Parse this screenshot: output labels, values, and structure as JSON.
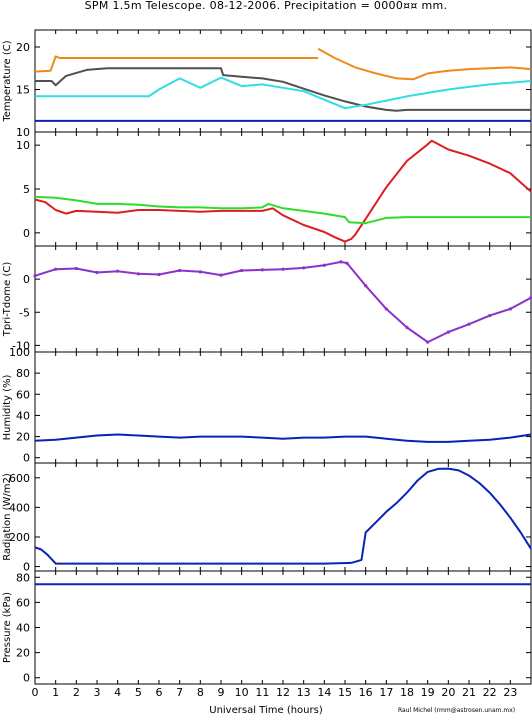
{
  "title": "SPM 1.5m Telescope. 08-12-2006. Precipitation = 0000¤¤ mm.",
  "xlabel": "Universal Time (hours)",
  "credit": "Raul Michel (rmm@astrosen.unam.mx)",
  "colors": {
    "orange": "#ee8a1c",
    "dark_gray": "#505050",
    "cyan": "#30dce6",
    "blue": "#0a22b8",
    "red": "#dc1e1e",
    "green": "#2edc2e",
    "purple": "#8a32cc",
    "axis": "#000000"
  },
  "chart_data": [
    {
      "id": "temperature",
      "type": "line",
      "ylabel": "Temperature (C)",
      "xlim": [
        0,
        24
      ],
      "ylim": [
        10,
        22
      ],
      "yticks": [
        10,
        15,
        20
      ],
      "xticks": [
        0,
        1,
        2,
        3,
        4,
        5,
        6,
        7,
        8,
        9,
        10,
        11,
        12,
        13,
        14,
        15,
        16,
        17,
        18,
        19,
        20,
        21,
        22,
        23
      ],
      "series": [
        {
          "color": "orange",
          "x": [
            0,
            0.75,
            1.0,
            1.2,
            13.7
          ],
          "y": [
            17.1,
            17.2,
            18.9,
            18.7,
            18.7
          ],
          "gap_after": 13.7,
          "x2": [
            13.7,
            14.5,
            15.5,
            16.5,
            17.5,
            18.3,
            19.0,
            20,
            21,
            22,
            23,
            24
          ],
          "y2": [
            19.8,
            18.7,
            17.6,
            16.9,
            16.3,
            16.2,
            16.9,
            17.2,
            17.4,
            17.5,
            17.6,
            17.4
          ]
        },
        {
          "color": "dark_gray",
          "x": [
            0,
            0.8,
            1.0,
            1.5,
            2.5,
            3.5,
            5,
            9.0,
            9.1,
            10,
            11,
            12,
            13,
            14,
            15,
            16,
            17,
            17.5,
            18,
            20,
            24
          ],
          "y": [
            16.0,
            16.0,
            15.5,
            16.6,
            17.3,
            17.5,
            17.5,
            17.5,
            16.7,
            16.5,
            16.3,
            15.9,
            15.1,
            14.3,
            13.6,
            13.0,
            12.6,
            12.5,
            12.6,
            12.6,
            12.6
          ]
        },
        {
          "color": "cyan",
          "x": [
            0,
            5.5,
            6,
            7,
            8,
            9,
            10,
            11,
            12,
            13,
            14,
            14.5,
            15,
            16,
            17,
            18,
            19,
            20,
            21,
            22,
            23,
            24
          ],
          "y": [
            14.2,
            14.2,
            15.0,
            16.3,
            15.2,
            16.4,
            15.4,
            15.6,
            15.2,
            14.8,
            13.8,
            13.3,
            12.8,
            13.2,
            13.7,
            14.2,
            14.6,
            15.0,
            15.3,
            15.6,
            15.8,
            16.0
          ]
        },
        {
          "color": "blue",
          "x": [
            0,
            24
          ],
          "y": [
            11.3,
            11.3
          ]
        }
      ]
    },
    {
      "id": "tpri_tdome_temps",
      "type": "line",
      "ylabel": "",
      "xlim": [
        0,
        24
      ],
      "ylim": [
        -1.5,
        11.5
      ],
      "yticks": [
        0,
        5,
        10
      ],
      "series": [
        {
          "color": "red",
          "x": [
            0,
            0.5,
            1,
            1.5,
            2,
            3,
            4,
            5,
            6,
            7,
            8,
            9,
            10,
            11,
            11.5,
            12,
            13,
            14,
            14.5,
            15,
            15.3,
            15.5,
            16,
            17,
            18,
            19,
            19.2,
            20,
            21,
            22,
            23,
            24
          ],
          "y": [
            3.8,
            3.5,
            2.6,
            2.2,
            2.5,
            2.4,
            2.3,
            2.6,
            2.6,
            2.5,
            2.4,
            2.5,
            2.5,
            2.5,
            2.8,
            2.0,
            0.9,
            0.1,
            -0.5,
            -1.0,
            -0.7,
            -0.2,
            1.6,
            5.2,
            8.2,
            10.1,
            10.5,
            9.5,
            8.8,
            7.9,
            6.8,
            4.7
          ]
        },
        {
          "color": "green",
          "x": [
            0,
            1,
            2,
            3,
            4,
            5,
            6,
            7,
            8,
            9,
            10,
            11,
            11.3,
            12,
            13,
            14,
            15,
            15.2,
            16,
            17,
            18,
            20,
            24
          ],
          "y": [
            4.1,
            4.0,
            3.7,
            3.3,
            3.3,
            3.2,
            3.0,
            2.9,
            2.9,
            2.8,
            2.8,
            2.9,
            3.3,
            2.8,
            2.5,
            2.2,
            1.8,
            1.2,
            1.1,
            1.7,
            1.8,
            1.8,
            1.8
          ]
        }
      ]
    },
    {
      "id": "tpri_tdome",
      "type": "scatter",
      "ylabel": "Tpri-Tdome (C)",
      "xlim": [
        0,
        24
      ],
      "ylim": [
        -11,
        5
      ],
      "yticks": [
        -10,
        -5,
        0
      ],
      "series": [
        {
          "color": "purple",
          "x": [
            0,
            1,
            2,
            3,
            4,
            5,
            6,
            7,
            8,
            9,
            10,
            11,
            12,
            13,
            14,
            14.8,
            15.1,
            16,
            17,
            18,
            19,
            20,
            21,
            22,
            23,
            24
          ],
          "y": [
            0.5,
            1.5,
            1.6,
            1.0,
            1.2,
            0.8,
            0.7,
            1.3,
            1.1,
            0.6,
            1.3,
            1.4,
            1.5,
            1.7,
            2.1,
            2.6,
            2.4,
            -1.0,
            -4.5,
            -7.3,
            -9.5,
            -8.0,
            -6.8,
            -5.5,
            -4.5,
            -2.8
          ]
        }
      ]
    },
    {
      "id": "humidity",
      "type": "line",
      "ylabel": "Humidity (%)",
      "xlim": [
        0,
        24
      ],
      "ylim": [
        -5,
        100
      ],
      "yticks": [
        0,
        20,
        40,
        60,
        80,
        100
      ],
      "series": [
        {
          "color": "blue",
          "x": [
            0,
            1,
            2,
            3,
            4,
            5,
            6,
            7,
            8,
            9,
            10,
            11,
            12,
            13,
            14,
            15,
            16,
            17,
            18,
            19,
            20,
            21,
            22,
            23,
            24
          ],
          "y": [
            16,
            17,
            19,
            21,
            22,
            21,
            20,
            19,
            20,
            20,
            20,
            19,
            18,
            19,
            19,
            20,
            20,
            18,
            16,
            15,
            15,
            16,
            17,
            19,
            22
          ]
        }
      ]
    },
    {
      "id": "radiation",
      "type": "line",
      "ylabel": "Radiation (W/m2)",
      "xlim": [
        0,
        24
      ],
      "ylim": [
        -30,
        700
      ],
      "yticks": [
        0,
        200,
        400,
        600
      ],
      "series": [
        {
          "color": "blue",
          "x": [
            0,
            0.3,
            0.6,
            1.0,
            2,
            5,
            8,
            11,
            14,
            15.3,
            15.8,
            16.0,
            16.5,
            17,
            17.5,
            18,
            18.5,
            19,
            19.5,
            20,
            20.5,
            21,
            21.5,
            22,
            22.5,
            23,
            23.5,
            24
          ],
          "y": [
            130,
            115,
            80,
            20,
            20,
            20,
            20,
            20,
            20,
            25,
            45,
            230,
            300,
            370,
            430,
            500,
            580,
            640,
            660,
            662,
            650,
            615,
            565,
            500,
            420,
            330,
            230,
            120
          ]
        }
      ]
    },
    {
      "id": "pressure",
      "type": "line",
      "ylabel": "Pressure (kPa)",
      "xlim": [
        0,
        24
      ],
      "ylim": [
        -5,
        85
      ],
      "yticks": [
        0,
        20,
        40,
        60,
        80
      ],
      "series": [
        {
          "color": "blue",
          "x": [
            0,
            24
          ],
          "y": [
            74.5,
            74.5
          ]
        }
      ]
    }
  ]
}
